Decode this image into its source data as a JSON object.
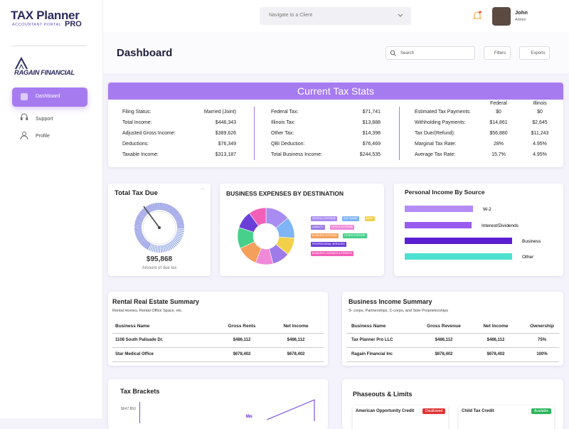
{
  "header": {
    "logo_title": "TAX Planner",
    "logo_subtitle": "ACCOUNTANT PORTAL",
    "logo_badge": "PRO",
    "client_select": "Navigate to a Client",
    "user_name": "John",
    "user_role": "Admin"
  },
  "sidebar": {
    "brand": "RAGAIN FINANCIAL",
    "nav": [
      "Dashboard",
      "Support",
      "Profile"
    ]
  },
  "toolbar": {
    "title": "Dashboard",
    "search": "Search",
    "filters": "Filters",
    "exports": "Exports"
  },
  "tax_stats": {
    "title": "Current Tax Stats",
    "summary": [
      [
        "Filing Status:",
        "Married (Joint)"
      ],
      [
        "Total Income:",
        "$446,343"
      ],
      [
        "Adjusted Gross Income:",
        "$389,626"
      ],
      [
        "Deductions:",
        "$76,349"
      ],
      [
        "Taxable Income:",
        "$313,187"
      ]
    ],
    "taxes": [
      [
        "Federal Tax:",
        "$71,741"
      ],
      [
        "Illinois Tax:",
        "$13,888"
      ],
      [
        "Other Tax:",
        "$14,398"
      ],
      [
        "QBI Deduction:",
        "$76,469"
      ],
      [
        "Total Business Income:",
        "$244,535"
      ]
    ],
    "columns": [
      "Federal",
      "Illinois"
    ],
    "payments": [
      [
        "Estimated Tax Payments:",
        "$0",
        "$0"
      ],
      [
        "Withholding Payments:",
        "$14,861",
        "$2,645"
      ],
      [
        "Tax Due/(Refund):",
        "$56,880",
        "$11,243"
      ],
      [
        "Marginal Tax Rate:",
        "28%",
        "4.95%"
      ],
      [
        "Average Tax Rate:",
        "15.7%",
        "4.95%"
      ]
    ]
  },
  "total_tax_due": {
    "title": "Total Tax Due",
    "menu": "...",
    "amount": "$95,868",
    "caption": "Amount of due tax"
  },
  "business_expenses": {
    "type": "pie",
    "title": "BUSINESS EXPENSES BY DESTINATION",
    "categories": [
      "PAYROLL EXPENSE",
      "SOFTWARE",
      "RENT",
      "LIABILITY",
      "OFFICE EXPENSE",
      "BUSINESS EXPENSE",
      "OTHER EXPENSE",
      "PROFESSIONAL SERVICES",
      "BUSINESS LICENSES & PERMITS"
    ],
    "values": [
      14,
      12,
      10,
      10,
      10,
      12,
      12,
      10,
      10
    ],
    "colors": [
      "#a98cf2",
      "#7fb4f5",
      "#f2d04a",
      "#9d7be8",
      "#f08ad8",
      "#f5a05a",
      "#46d08a",
      "#6a3fd8",
      "#f25fb8"
    ]
  },
  "personal_income": {
    "type": "bar",
    "title": "Personal Income By Source",
    "categories": [
      "W-2",
      "Interest/Dividends",
      "Business",
      "Other"
    ],
    "values": [
      96,
      94,
      151,
      151
    ],
    "xlim": [
      0,
      160
    ],
    "colors": [
      "#b38cf5",
      "#9a5cf0",
      "#5b1fd1",
      "#4de0d0"
    ]
  },
  "rental_summary": {
    "title": "Rental Real Estate Summary",
    "subtitle": "Rental Homes, Rental Office Space, etc.",
    "columns": [
      "Business Name",
      "Gross Rents",
      "Net Income"
    ],
    "rows": [
      [
        "1108 South Palisade Dr.",
        "$486,112",
        "$486,112"
      ],
      [
        "Star Medical Office",
        "$678,402",
        "$678,402"
      ]
    ]
  },
  "business_summary": {
    "title": "Business Income Summary",
    "subtitle": "S- corps, Partnerships, C-corps, and Sole Proprietorships",
    "columns": [
      "Business Name",
      "Gross Revenue",
      "Net Income",
      "Ownership"
    ],
    "rows": [
      [
        "Tax Planner Pro LLC",
        "$486,112",
        "$486,112",
        "75%"
      ],
      [
        "Ragain Financial Inc",
        "$678,402",
        "$678,402",
        "100%"
      ]
    ]
  },
  "tax_brackets": {
    "title": "Tax Brackets",
    "axis_label": "$647,850",
    "series_label": "Mo"
  },
  "phaseouts": {
    "title": "Phaseouts & Limits",
    "items": [
      {
        "name": "American Opportunity Credit",
        "status": "Disallowed"
      },
      {
        "name": "Child Tax Credit",
        "status": "Available"
      }
    ]
  }
}
